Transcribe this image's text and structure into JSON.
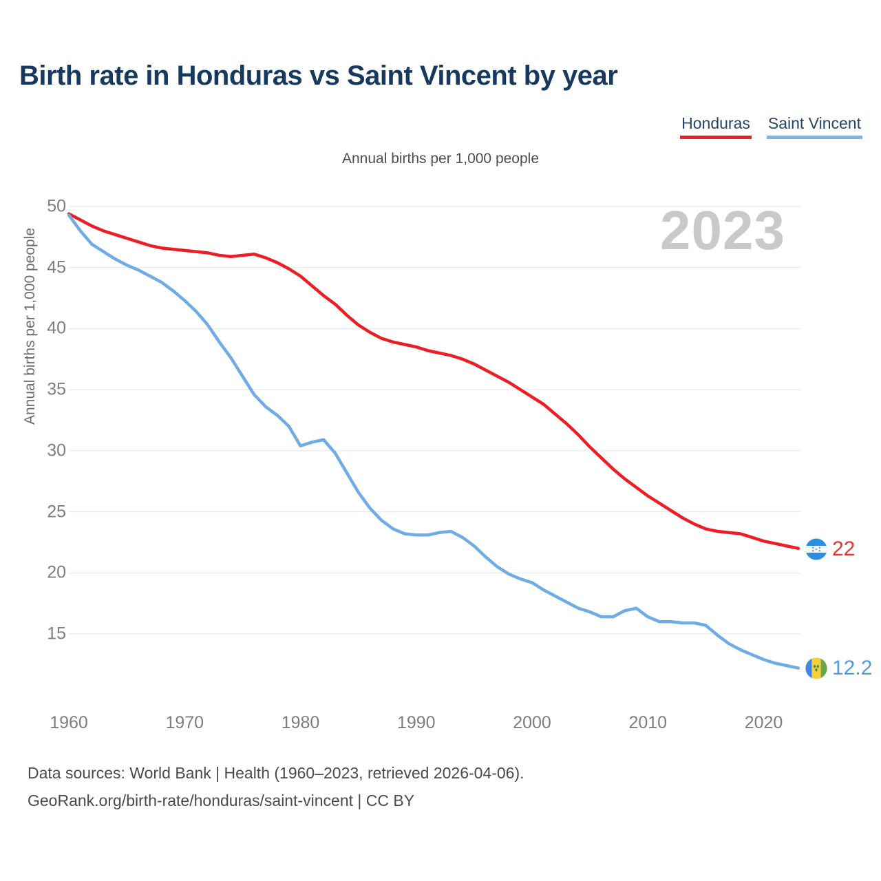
{
  "title": "Birth rate in Honduras vs Saint Vincent by year",
  "subtitle": "Annual births per 1,000 people",
  "y_axis_title": "Annual births per 1,000 people",
  "watermark_year": "2023",
  "legend": {
    "items": [
      {
        "label": "Honduras",
        "color": "#ee1d23"
      },
      {
        "label": "Saint Vincent",
        "color": "#7ab4e9"
      }
    ]
  },
  "end_labels": {
    "honduras": {
      "value": "22",
      "color": "#e8342c",
      "flag": "honduras-flag"
    },
    "saint_vincent": {
      "value": "12.2",
      "color": "#4f9be1",
      "flag": "saint-vincent-flag"
    }
  },
  "footer": {
    "line1": "Data sources: World Bank | Health (1960–2023, retrieved 2026-04-06).",
    "line2": "GeoRank.org/birth-rate/honduras/saint-vincent | CC BY"
  },
  "colors": {
    "title": "#17395e",
    "gridline": "#e9e9e9",
    "tick_label": "#7d7d7d",
    "watermark": "#c9c9c9"
  },
  "chart_data": {
    "type": "line",
    "title": "Birth rate in Honduras vs Saint Vincent by year",
    "subtitle": "Annual births per 1,000 people",
    "ylabel": "Annual births per 1,000 people",
    "x_range": [
      1960,
      2023
    ],
    "ylim": [
      15,
      50
    ],
    "grid": "horizontal",
    "legend_position": "top-right",
    "y_ticks": [
      50,
      45,
      40,
      35,
      30,
      25,
      20,
      15
    ],
    "x_ticks": [
      1960,
      1970,
      1980,
      1990,
      2000,
      2010,
      2020
    ],
    "x_start": 1960,
    "x_step": 1,
    "series": [
      {
        "name": "Honduras",
        "color": "#ee1d23",
        "end_label": "22",
        "values": [
          49.4,
          48.9,
          48.4,
          48.0,
          47.7,
          47.4,
          47.1,
          46.8,
          46.6,
          46.5,
          46.4,
          46.3,
          46.2,
          46.0,
          45.9,
          46.0,
          46.1,
          45.8,
          45.4,
          44.9,
          44.3,
          43.5,
          42.7,
          42.0,
          41.1,
          40.3,
          39.7,
          39.2,
          38.9,
          38.7,
          38.5,
          38.2,
          38.0,
          37.8,
          37.5,
          37.1,
          36.6,
          36.1,
          35.6,
          35.0,
          34.4,
          33.8,
          33.0,
          32.2,
          31.3,
          30.3,
          29.4,
          28.5,
          27.7,
          27.0,
          26.3,
          25.7,
          25.1,
          24.5,
          24.0,
          23.6,
          23.4,
          23.3,
          23.2,
          22.9,
          22.6,
          22.4,
          22.2,
          22.0
        ]
      },
      {
        "name": "Saint Vincent",
        "color": "#6fabe4",
        "end_label": "12.2",
        "values": [
          49.3,
          48.0,
          46.9,
          46.3,
          45.7,
          45.2,
          44.8,
          44.3,
          43.8,
          43.1,
          42.3,
          41.4,
          40.3,
          38.9,
          37.6,
          36.1,
          34.6,
          33.6,
          32.9,
          32.0,
          30.4,
          30.7,
          30.9,
          29.8,
          28.2,
          26.6,
          25.3,
          24.3,
          23.6,
          23.2,
          23.1,
          23.1,
          23.3,
          23.4,
          22.9,
          22.2,
          21.3,
          20.5,
          19.9,
          19.5,
          19.2,
          18.6,
          18.1,
          17.6,
          17.1,
          16.8,
          16.4,
          16.4,
          16.9,
          17.1,
          16.4,
          16.0,
          16.0,
          15.9,
          15.9,
          15.7,
          14.9,
          14.2,
          13.7,
          13.3,
          12.9,
          12.6,
          12.4,
          12.2
        ]
      }
    ]
  }
}
